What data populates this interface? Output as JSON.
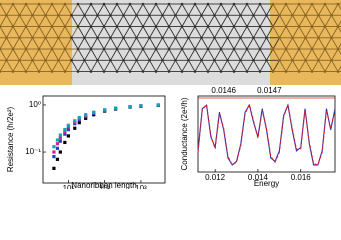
{
  "chart_data": [
    {
      "type": "scatter",
      "xlabel": "Nanoribbon length",
      "ylabel": "Resistance (h/2e²)",
      "xscale": "log",
      "yscale": "log",
      "xlim": [
        2,
        4600
      ],
      "ylim": [
        0.022,
        1.55
      ],
      "xticks": [
        {
          "value": 10,
          "label": "10¹"
        },
        {
          "value": 100,
          "label": "10²"
        },
        {
          "value": 1000,
          "label": "10³"
        }
      ],
      "yticks": [
        {
          "value": 0.1,
          "label": "10⁻¹"
        },
        {
          "value": 1,
          "label": "10⁰"
        }
      ],
      "x": [
        4,
        5,
        6,
        8,
        10,
        15,
        20,
        30,
        50,
        100,
        200,
        500,
        1000,
        3000
      ],
      "series": [
        {
          "color": "#000000",
          "values": [
            0.045,
            0.07,
            0.1,
            0.16,
            0.22,
            0.32,
            0.42,
            0.52,
            0.62,
            0.74,
            0.82,
            0.9,
            0.94,
            0.98
          ]
        },
        {
          "color": "#1f3fd8",
          "values": [
            0.08,
            0.12,
            0.17,
            0.24,
            0.3,
            0.4,
            0.48,
            0.57,
            0.66,
            0.76,
            0.84,
            0.91,
            0.95,
            0.99
          ]
        },
        {
          "color": "#d8208c",
          "values": [
            0.1,
            0.15,
            0.2,
            0.27,
            0.34,
            0.43,
            0.51,
            0.6,
            0.69,
            0.78,
            0.85,
            0.92,
            0.96,
            1.0
          ]
        },
        {
          "color": "#14a5b4",
          "values": [
            0.13,
            0.18,
            0.23,
            0.3,
            0.37,
            0.46,
            0.54,
            0.62,
            0.7,
            0.79,
            0.86,
            0.92,
            0.96,
            1.0
          ]
        }
      ]
    },
    {
      "type": "line",
      "xlabel": "Energy",
      "ylabel": "Conductance (2e²/h)",
      "xlim": [
        0.0112,
        0.0176
      ],
      "ylim": [
        0,
        1.08
      ],
      "xticks": [
        0.012,
        0.014,
        0.016
      ],
      "annotations": [
        "0.0146",
        "0.0147"
      ],
      "x": [
        0.0112,
        0.0114,
        0.0116,
        0.0118,
        0.012,
        0.0122,
        0.0124,
        0.0126,
        0.0128,
        0.013,
        0.0132,
        0.0134,
        0.0136,
        0.0138,
        0.014,
        0.0142,
        0.0144,
        0.0146,
        0.0148,
        0.015,
        0.0152,
        0.0154,
        0.0156,
        0.0158,
        0.016,
        0.0162,
        0.0164,
        0.0166,
        0.0168,
        0.017,
        0.0172,
        0.0174,
        0.0176
      ],
      "series": [
        {
          "color": "#1f2fd0",
          "style": "solid",
          "values": [
            0.3,
            0.9,
            0.95,
            0.5,
            0.35,
            0.85,
            0.6,
            0.2,
            0.1,
            0.15,
            0.4,
            0.85,
            0.95,
            0.7,
            0.5,
            0.9,
            0.6,
            0.2,
            0.15,
            0.3,
            0.8,
            0.95,
            0.6,
            0.3,
            0.35,
            0.9,
            0.4,
            0.1,
            0.1,
            0.3,
            0.9,
            0.6,
            0.9
          ]
        },
        {
          "color": "#e02020",
          "style": "dashed",
          "values": [
            0.28,
            0.88,
            0.96,
            0.52,
            0.33,
            0.83,
            0.62,
            0.22,
            0.1,
            0.14,
            0.38,
            0.83,
            0.96,
            0.72,
            0.48,
            0.88,
            0.62,
            0.22,
            0.14,
            0.28,
            0.78,
            0.96,
            0.62,
            0.32,
            0.33,
            0.88,
            0.42,
            0.12,
            0.1,
            0.28,
            0.88,
            0.62,
            0.88
          ]
        }
      ]
    }
  ]
}
